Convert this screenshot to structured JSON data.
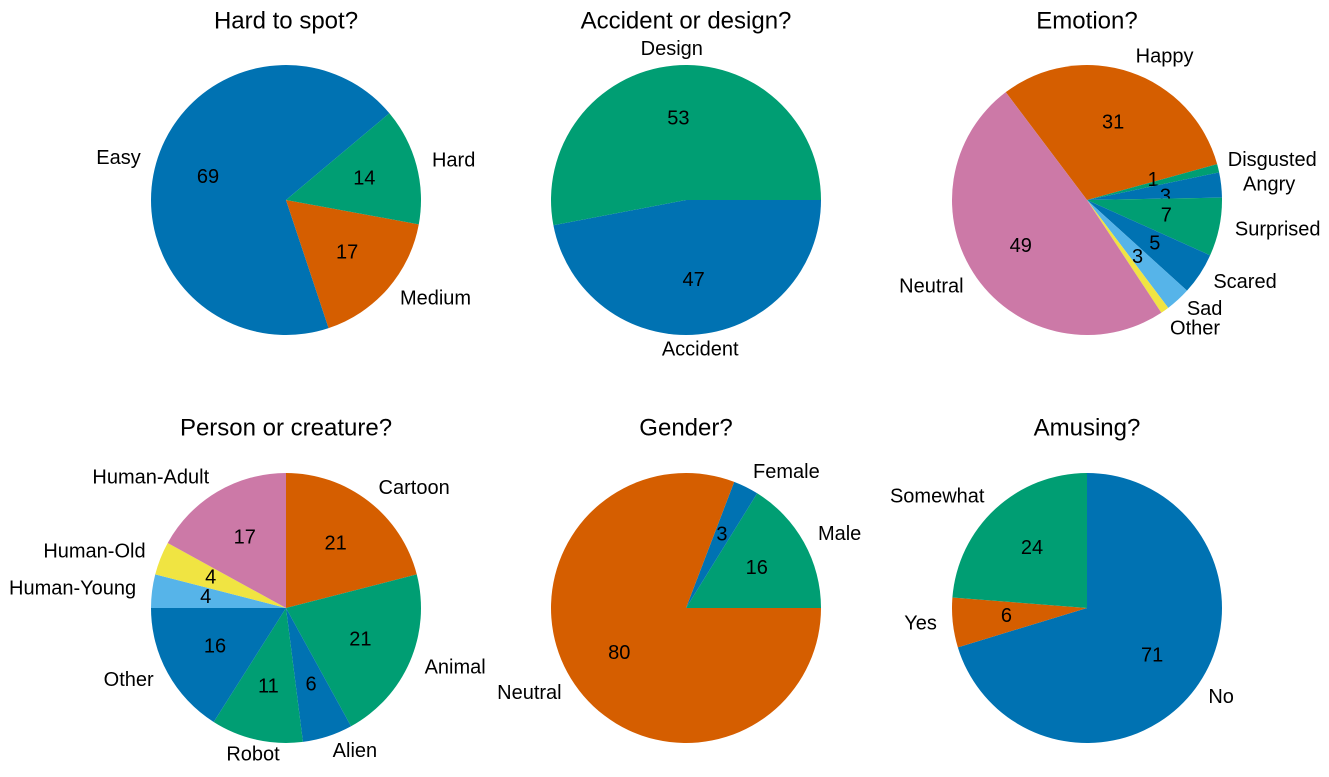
{
  "chart_data": [
    {
      "type": "pie",
      "title": "Hard to spot?",
      "slices": [
        {
          "label": "Easy",
          "value": 69,
          "color": "#0072b2"
        },
        {
          "label": "Medium",
          "value": 17,
          "color": "#d55e00"
        },
        {
          "label": "Hard",
          "value": 14,
          "color": "#009e73"
        }
      ]
    },
    {
      "type": "pie",
      "title": "Accident or design?",
      "slices": [
        {
          "label": "Accident",
          "value": 47,
          "color": "#0072b2"
        },
        {
          "label": "Design",
          "value": 53,
          "color": "#009e73"
        }
      ]
    },
    {
      "type": "pie",
      "title": "Emotion?",
      "slices": [
        {
          "label": "Happy",
          "value": 31,
          "color": "#d55e00"
        },
        {
          "label": "Disgusted",
          "value": 1,
          "color": "#009e73"
        },
        {
          "label": "Angry",
          "value": 3,
          "color": "#0072b2"
        },
        {
          "label": "Surprised",
          "value": 7,
          "color": "#009e73"
        },
        {
          "label": "Scared",
          "value": 5,
          "color": "#0072b2"
        },
        {
          "label": "Sad",
          "value": 3,
          "color": "#56b4e9"
        },
        {
          "label": "Other",
          "value": 1,
          "color": "#f0e442"
        },
        {
          "label": "Neutral",
          "value": 49,
          "color": "#cc79a7"
        }
      ]
    },
    {
      "type": "pie",
      "title": "Person or creature?",
      "slices": [
        {
          "label": "Cartoon",
          "value": 21,
          "color": "#d55e00"
        },
        {
          "label": "Animal",
          "value": 21,
          "color": "#009e73"
        },
        {
          "label": "Alien",
          "value": 6,
          "color": "#0072b2"
        },
        {
          "label": "Robot",
          "value": 11,
          "color": "#009e73"
        },
        {
          "label": "Other",
          "value": 16,
          "color": "#0072b2"
        },
        {
          "label": "Human-Young",
          "value": 4,
          "color": "#56b4e9"
        },
        {
          "label": "Human-Old",
          "value": 4,
          "color": "#f0e442"
        },
        {
          "label": "Human-Adult",
          "value": 17,
          "color": "#cc79a7"
        }
      ]
    },
    {
      "type": "pie",
      "title": "Gender?",
      "slices": [
        {
          "label": "Male",
          "value": 16,
          "color": "#009e73"
        },
        {
          "label": "Female",
          "value": 3,
          "color": "#0072b2"
        },
        {
          "label": "Neutral",
          "value": 80,
          "color": "#d55e00"
        }
      ]
    },
    {
      "type": "pie",
      "title": "Amusing?",
      "slices": [
        {
          "label": "No",
          "value": 71,
          "color": "#0072b2"
        },
        {
          "label": "Yes",
          "value": 6,
          "color": "#d55e00"
        },
        {
          "label": "Somewhat",
          "value": 24,
          "color": "#009e73"
        }
      ]
    }
  ]
}
